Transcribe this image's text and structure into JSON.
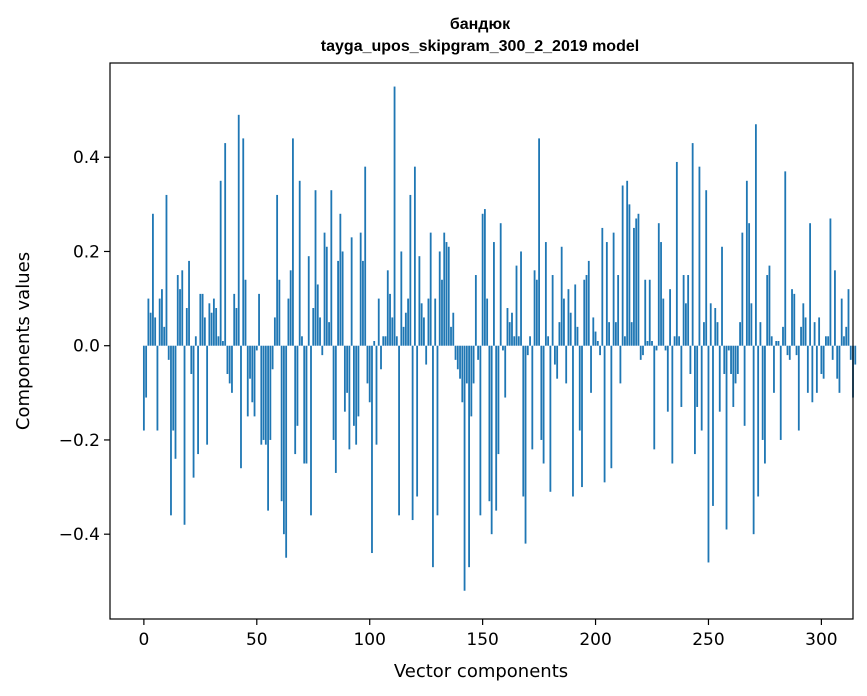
{
  "chart_data": {
    "type": "bar",
    "title": "бандюк",
    "subtitle": "tayga_upos_skipgram_300_2_2019 model",
    "xlabel": "Vector components",
    "ylabel": "Components values",
    "xlim": [
      -15,
      314
    ],
    "ylim": [
      -0.58,
      0.6
    ],
    "xticks": [
      0,
      50,
      100,
      150,
      200,
      250,
      300
    ],
    "xtick_labels": [
      "0",
      "50",
      "100",
      "150",
      "200",
      "250",
      "300"
    ],
    "yticks": [
      -0.4,
      -0.2,
      0.0,
      0.2,
      0.4
    ],
    "ytick_labels": [
      "−0.4",
      "−0.2",
      "0.0",
      "0.2",
      "0.4"
    ],
    "grid": false,
    "bar_color": "#1f77b4",
    "values": [
      -0.18,
      -0.11,
      0.1,
      0.07,
      0.28,
      0.06,
      -0.18,
      0.1,
      0.12,
      0.04,
      0.32,
      -0.03,
      -0.36,
      -0.18,
      -0.24,
      0.15,
      0.12,
      0.16,
      -0.38,
      0.08,
      0.18,
      -0.06,
      -0.28,
      0.02,
      -0.23,
      0.11,
      0.11,
      0.06,
      -0.21,
      0.09,
      0.07,
      0.1,
      0.08,
      0.02,
      0.35,
      0.01,
      0.43,
      -0.06,
      -0.08,
      -0.1,
      0.11,
      0.08,
      0.49,
      -0.26,
      0.44,
      0.14,
      -0.15,
      -0.07,
      -0.12,
      -0.15,
      -0.01,
      0.11,
      -0.21,
      -0.2,
      -0.21,
      -0.35,
      -0.2,
      -0.05,
      0.06,
      0.32,
      0.14,
      -0.33,
      -0.4,
      -0.45,
      0.1,
      0.16,
      0.44,
      -0.23,
      -0.17,
      0.35,
      0.02,
      -0.25,
      -0.25,
      0.19,
      -0.36,
      0.08,
      0.33,
      0.13,
      0.06,
      -0.02,
      0.24,
      0.21,
      0.05,
      0.33,
      -0.2,
      -0.27,
      0.18,
      0.28,
      0.2,
      -0.14,
      -0.1,
      -0.22,
      0.23,
      -0.17,
      -0.21,
      -0.15,
      0.24,
      0.18,
      0.38,
      -0.08,
      -0.12,
      -0.44,
      0.01,
      -0.21,
      0.1,
      -0.05,
      0.02,
      0.02,
      0.16,
      0.11,
      0.06,
      0.55,
      0.02,
      -0.36,
      0.2,
      0.04,
      0.07,
      0.1,
      0.32,
      -0.37,
      0.38,
      -0.32,
      0.19,
      0.09,
      0.06,
      -0.04,
      0.1,
      0.24,
      -0.47,
      0.1,
      -0.36,
      0.2,
      0.14,
      0.24,
      0.22,
      0.21,
      0.04,
      0.07,
      -0.03,
      -0.05,
      -0.07,
      -0.12,
      -0.52,
      -0.08,
      -0.47,
      -0.15,
      -0.08,
      0.15,
      -0.03,
      -0.36,
      0.28,
      0.29,
      0.1,
      -0.33,
      -0.4,
      0.22,
      -0.35,
      -0.23,
      0.26,
      -0.01,
      -0.11,
      0.08,
      0.05,
      0.07,
      0.02,
      0.17,
      0.02,
      0.2,
      -0.32,
      -0.42,
      -0.02,
      0.02,
      -0.22,
      0.16,
      0.14,
      0.44,
      -0.2,
      -0.25,
      0.22,
      0.02,
      -0.31,
      0.15,
      -0.04,
      -0.07,
      0.05,
      0.21,
      0.1,
      -0.08,
      0.12,
      0.07,
      -0.32,
      0.13,
      0.04,
      -0.18,
      -0.3,
      0.14,
      0.15,
      0.18,
      -0.1,
      0.06,
      0.03,
      0.01,
      -0.02,
      0.25,
      -0.29,
      0.22,
      0.05,
      -0.26,
      0.24,
      0.05,
      0.15,
      -0.08,
      0.34,
      0.02,
      0.35,
      0.3,
      0.05,
      0.25,
      0.27,
      0.28,
      -0.03,
      -0.02,
      0.14,
      0.01,
      0.14,
      0.01,
      -0.22,
      -0.01,
      0.26,
      0.22,
      0.1,
      -0.01,
      -0.14,
      0.12,
      -0.25,
      0.02,
      0.39,
      0.02,
      -0.13,
      0.15,
      0.09,
      0.15,
      -0.06,
      0.43,
      -0.23,
      -0.13,
      0.38,
      -0.18,
      0.05,
      0.33,
      -0.46,
      0.09,
      -0.34,
      0.08,
      0.05,
      -0.14,
      0.21,
      -0.06,
      -0.39,
      -0.01,
      -0.06,
      -0.13,
      -0.08,
      -0.06,
      0.05,
      0.24,
      -0.17,
      0.35,
      0.26,
      0.09,
      -0.4,
      0.47,
      -0.32,
      0.05,
      -0.2,
      -0.25,
      0.15,
      0.17,
      0.02,
      -0.1,
      0.01,
      0.01,
      -0.2,
      0.04,
      0.37,
      -0.02,
      -0.03,
      0.12,
      0.11,
      -0.02,
      -0.18,
      0.04,
      0.09,
      0.06,
      -0.1,
      0.26,
      -0.12,
      0.05,
      -0.1,
      0.06,
      -0.06,
      -0.07,
      0.02,
      0.02,
      0.27,
      -0.03,
      0.16,
      -0.07,
      -0.1,
      0.1,
      0.02,
      0.04,
      0.12,
      -0.03,
      -0.11,
      -0.04
    ]
  }
}
